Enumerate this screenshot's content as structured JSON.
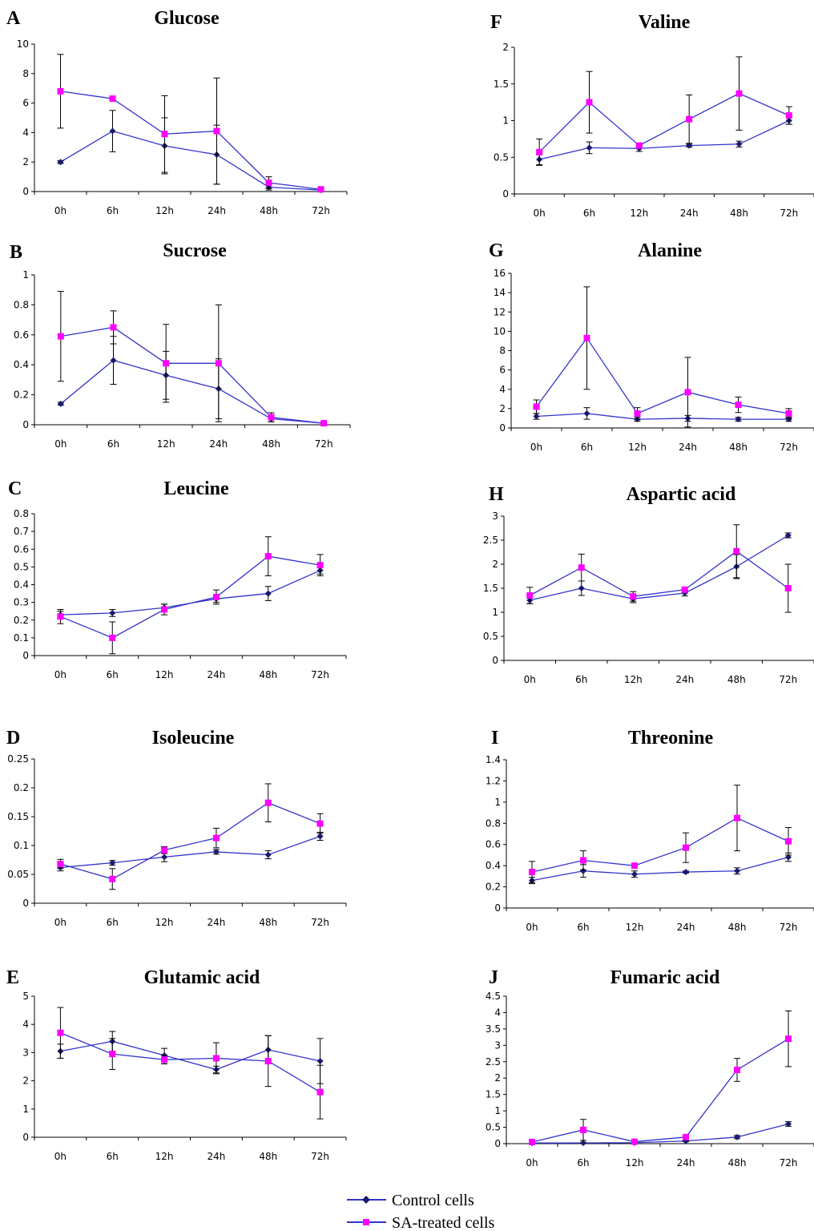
{
  "legend": {
    "control_label": "Control cells",
    "sa_label": "SA-treated cells",
    "control_color": "#1a1a6e",
    "sa_color": "#ff00ff",
    "line_color": "#3333cc"
  },
  "chart_data": [
    {
      "letter": "A",
      "title": "Glucose",
      "type": "line",
      "categories": [
        "0h",
        "6h",
        "12h",
        "24h",
        "48h",
        "72h"
      ],
      "ylim": [
        0,
        10
      ],
      "yticks": [
        "0",
        "2",
        "4",
        "6",
        "8",
        "10"
      ],
      "series": [
        {
          "name": "Control cells",
          "values": [
            2.0,
            4.1,
            3.1,
            2.5,
            0.3,
            0.1
          ],
          "err": [
            0.1,
            1.4,
            1.9,
            2.0,
            0.2,
            0.05
          ]
        },
        {
          "name": "SA-treated cells",
          "values": [
            6.8,
            6.3,
            3.9,
            4.1,
            0.6,
            0.15
          ],
          "err": [
            2.5,
            0.1,
            2.6,
            3.6,
            0.4,
            0.05
          ]
        }
      ]
    },
    {
      "letter": "F",
      "title": "Valine",
      "type": "line",
      "categories": [
        "0h",
        "6h",
        "12h",
        "24h",
        "48h",
        "72h"
      ],
      "ylim": [
        0,
        2
      ],
      "yticks": [
        "0",
        "0.5",
        "1",
        "1.5",
        "2"
      ],
      "series": [
        {
          "name": "Control cells",
          "values": [
            0.47,
            0.63,
            0.62,
            0.66,
            0.68,
            1.0
          ],
          "err": [
            0.07,
            0.08,
            0.04,
            0.02,
            0.04,
            0.05
          ]
        },
        {
          "name": "SA-treated cells",
          "values": [
            0.57,
            1.25,
            0.66,
            1.02,
            1.37,
            1.07
          ],
          "err": [
            0.18,
            0.42,
            0.02,
            0.33,
            0.5,
            0.12
          ]
        }
      ]
    },
    {
      "letter": "B",
      "title": "Sucrose",
      "type": "line",
      "categories": [
        "0h",
        "6h",
        "12h",
        "24h",
        "48h",
        "72h"
      ],
      "ylim": [
        0,
        1
      ],
      "yticks": [
        "0",
        "0.2",
        "0.4",
        "0.6",
        "0.8",
        "1"
      ],
      "series": [
        {
          "name": "Control cells",
          "values": [
            0.14,
            0.43,
            0.33,
            0.24,
            0.04,
            0.01
          ],
          "err": [
            0.01,
            0.16,
            0.16,
            0.2,
            0.02,
            0.005
          ]
        },
        {
          "name": "SA-treated cells",
          "values": [
            0.59,
            0.65,
            0.41,
            0.41,
            0.05,
            0.01
          ],
          "err": [
            0.3,
            0.11,
            0.26,
            0.39,
            0.03,
            0.005
          ]
        }
      ]
    },
    {
      "letter": "G",
      "title": "Alanine",
      "type": "line",
      "categories": [
        "0h",
        "6h",
        "12h",
        "24h",
        "48h",
        "72h"
      ],
      "ylim": [
        0,
        16
      ],
      "yticks": [
        "0",
        "2",
        "4",
        "6",
        "8",
        "10",
        "12",
        "14",
        "16"
      ],
      "series": [
        {
          "name": "Control cells",
          "values": [
            1.2,
            1.5,
            0.9,
            1.0,
            0.9,
            0.9
          ],
          "err": [
            0.3,
            0.6,
            0.2,
            0.3,
            0.2,
            0.2
          ]
        },
        {
          "name": "SA-treated cells",
          "values": [
            2.2,
            9.3,
            1.5,
            3.7,
            2.4,
            1.5
          ],
          "err": [
            0.7,
            5.3,
            0.6,
            3.6,
            0.8,
            0.5
          ]
        }
      ]
    },
    {
      "letter": "C",
      "title": "Leucine",
      "type": "line",
      "categories": [
        "0h",
        "6h",
        "12h",
        "24h",
        "48h",
        "72h"
      ],
      "ylim": [
        0,
        0.8
      ],
      "yticks": [
        "0",
        "0.1",
        "0.2",
        "0.3",
        "0.4",
        "0.5",
        "0.6",
        "0.7",
        "0.8"
      ],
      "series": [
        {
          "name": "Control cells",
          "values": [
            0.23,
            0.24,
            0.27,
            0.32,
            0.35,
            0.48
          ],
          "err": [
            0.02,
            0.02,
            0.02,
            0.02,
            0.04,
            0.02
          ]
        },
        {
          "name": "SA-treated cells",
          "values": [
            0.22,
            0.1,
            0.26,
            0.33,
            0.56,
            0.51
          ],
          "err": [
            0.04,
            0.09,
            0.03,
            0.04,
            0.11,
            0.06
          ]
        }
      ]
    },
    {
      "letter": "H",
      "title": "Aspartic acid",
      "type": "line",
      "categories": [
        "0h",
        "6h",
        "12h",
        "24h",
        "48h",
        "72h"
      ],
      "ylim": [
        0,
        3
      ],
      "yticks": [
        "0",
        "0.5",
        "1",
        "1.5",
        "2",
        "2.5",
        "3"
      ],
      "series": [
        {
          "name": "Control cells",
          "values": [
            1.25,
            1.5,
            1.28,
            1.4,
            1.95,
            2.6
          ],
          "err": [
            0.07,
            0.15,
            0.08,
            0.06,
            0.25,
            0.05
          ]
        },
        {
          "name": "SA-treated cells",
          "values": [
            1.35,
            1.93,
            1.33,
            1.47,
            2.27,
            1.5
          ],
          "err": [
            0.17,
            0.28,
            0.1,
            0.05,
            0.55,
            0.5
          ]
        }
      ]
    },
    {
      "letter": "D",
      "title": "Isoleucine",
      "type": "line",
      "categories": [
        "0h",
        "6h",
        "12h",
        "24h",
        "48h",
        "72h"
      ],
      "ylim": [
        0,
        0.25
      ],
      "yticks": [
        "0",
        "0.05",
        "0.1",
        "0.15",
        "0.2",
        "0.25"
      ],
      "series": [
        {
          "name": "Control cells",
          "values": [
            0.062,
            0.07,
            0.08,
            0.089,
            0.084,
            0.116
          ],
          "err": [
            0.006,
            0.004,
            0.008,
            0.004,
            0.007,
            0.007
          ]
        },
        {
          "name": "SA-treated cells",
          "values": [
            0.068,
            0.042,
            0.092,
            0.113,
            0.174,
            0.138
          ],
          "err": [
            0.008,
            0.018,
            0.006,
            0.017,
            0.033,
            0.017
          ]
        }
      ]
    },
    {
      "letter": "I",
      "title": "Threonine",
      "type": "line",
      "categories": [
        "0h",
        "6h",
        "12h",
        "24h",
        "48h",
        "72h"
      ],
      "ylim": [
        0,
        1.4
      ],
      "yticks": [
        "0",
        "0.2",
        "0.4",
        "0.6",
        "0.8",
        "1",
        "1.2",
        "1.4"
      ],
      "series": [
        {
          "name": "Control cells",
          "values": [
            0.26,
            0.35,
            0.32,
            0.34,
            0.35,
            0.48
          ],
          "err": [
            0.03,
            0.06,
            0.03,
            0.01,
            0.03,
            0.04
          ]
        },
        {
          "name": "SA-treated cells",
          "values": [
            0.34,
            0.45,
            0.4,
            0.57,
            0.85,
            0.63
          ],
          "err": [
            0.1,
            0.09,
            0.02,
            0.14,
            0.31,
            0.13
          ]
        }
      ]
    },
    {
      "letter": "E",
      "title": "Glutamic acid",
      "type": "line",
      "categories": [
        "0h",
        "6h",
        "12h",
        "24h",
        "48h",
        "72h"
      ],
      "ylim": [
        0,
        5
      ],
      "yticks": [
        "0",
        "1",
        "2",
        "3",
        "4",
        "5"
      ],
      "series": [
        {
          "name": "Control cells",
          "values": [
            3.05,
            3.4,
            2.9,
            2.4,
            3.1,
            2.7
          ],
          "err": [
            0.25,
            0.35,
            0.25,
            0.12,
            0.5,
            0.8
          ]
        },
        {
          "name": "SA-treated cells",
          "values": [
            3.7,
            2.95,
            2.75,
            2.8,
            2.7,
            1.6
          ],
          "err": [
            0.9,
            0.55,
            0.15,
            0.55,
            0.9,
            0.95
          ]
        }
      ]
    },
    {
      "letter": "J",
      "title": "Fumaric acid",
      "type": "line",
      "categories": [
        "0h",
        "6h",
        "12h",
        "24h",
        "48h",
        "72h"
      ],
      "ylim": [
        0,
        4.5
      ],
      "yticks": [
        "0",
        "0.5",
        "1",
        "1.5",
        "2",
        "2.5",
        "3",
        "3.5",
        "4",
        "4.5"
      ],
      "series": [
        {
          "name": "Control cells",
          "values": [
            0.02,
            0.02,
            0.03,
            0.08,
            0.2,
            0.6
          ],
          "err": [
            0.01,
            0.01,
            0.01,
            0.02,
            0.05,
            0.07
          ]
        },
        {
          "name": "SA-treated cells",
          "values": [
            0.05,
            0.42,
            0.06,
            0.2,
            2.25,
            3.2
          ],
          "err": [
            0.02,
            0.32,
            0.02,
            0.05,
            0.35,
            0.85
          ]
        }
      ]
    }
  ]
}
